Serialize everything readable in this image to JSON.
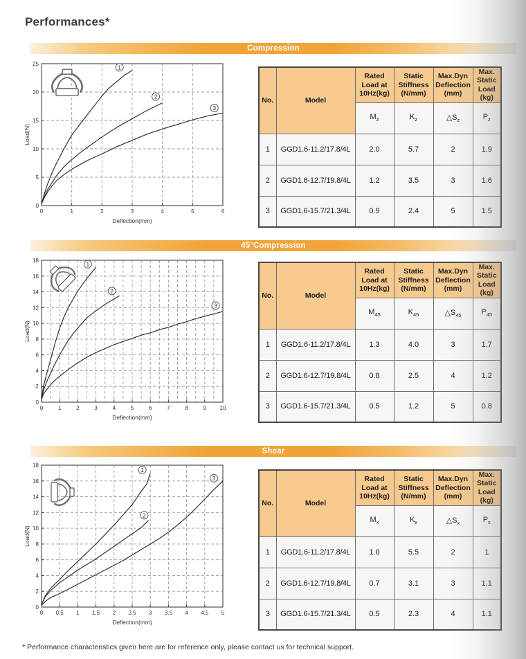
{
  "page": {
    "title": "Performances*",
    "footnote": "* Performance characteristics given here are for reference only, please contact us for technical support."
  },
  "colors": {
    "section_bar_orange": "#f0a338",
    "section_bar_edge": "#faf0dc",
    "table_header_tan": "#f6ca8e",
    "curve_color": "#2b2b2b",
    "grid_color": "#9a9a9a"
  },
  "table_headers": {
    "no": "No.",
    "model": "Model",
    "cols": [
      "Rated Load at 10Hz(kg)",
      "Static Stiffness (N/mm)",
      "Max.Dyn Deflection (mm)",
      "Max. Static Load (kg)"
    ]
  },
  "sections": [
    {
      "header": "Compression",
      "symbols": [
        {
          "base": "M",
          "sub": "z"
        },
        {
          "base": "K",
          "sub": "z"
        },
        {
          "base": "△S",
          "sub": "z"
        },
        {
          "base": "P",
          "sub": "z"
        }
      ],
      "table_rows": [
        [
          "1",
          "GGD1.6-11.2/17.8/4L",
          "2.0",
          "5.7",
          "2",
          "1.9"
        ],
        [
          "2",
          "GGD1.6-12.7/19.8/4L",
          "1.2",
          "3.5",
          "3",
          "1.6"
        ],
        [
          "3",
          "GGD1.6-15.7/21.3/4L",
          "0.9",
          "2.4",
          "5",
          "1.5"
        ]
      ],
      "chart_data": {
        "type": "line",
        "title": "Compression load-deflection curves",
        "xlabel": "Deflection(mm)",
        "ylabel": "Load(N)",
        "xlim": [
          0,
          6
        ],
        "ylim": [
          0,
          25
        ],
        "xtick_step": 1,
        "ytick_step": 5,
        "xgrid_step": 1,
        "ygrid_step": 5,
        "grid": true,
        "grid_style": "dashed",
        "legend": "circled numbers at curve ends",
        "series": [
          {
            "name": "1",
            "label_at": [
              2.58,
              24.35
            ],
            "points": [
              [
                0,
                0.3
              ],
              [
                0.1,
                2.2
              ],
              [
                0.2,
                3.8
              ],
              [
                0.35,
                5.8
              ],
              [
                0.5,
                7.5
              ],
              [
                0.75,
                10.1
              ],
              [
                1,
                12.4
              ],
              [
                1.25,
                14.2
              ],
              [
                1.5,
                15.9
              ],
              [
                1.75,
                17.6
              ],
              [
                2,
                19.3
              ],
              [
                2.25,
                20.8
              ],
              [
                2.5,
                21.9
              ],
              [
                2.75,
                23
              ],
              [
                3,
                23.8
              ]
            ]
          },
          {
            "name": "2",
            "label_at": [
              3.78,
              19.2
            ],
            "points": [
              [
                0,
                0.3
              ],
              [
                0.1,
                1.7
              ],
              [
                0.2,
                2.8
              ],
              [
                0.35,
                4.1
              ],
              [
                0.5,
                5.3
              ],
              [
                0.75,
                6.9
              ],
              [
                1,
                8.1
              ],
              [
                1.25,
                9.2
              ],
              [
                1.5,
                10.2
              ],
              [
                2,
                12.1
              ],
              [
                2.5,
                13.8
              ],
              [
                3,
                15.3
              ],
              [
                3.5,
                16.8
              ],
              [
                4,
                18.1
              ]
            ]
          },
          {
            "name": "3",
            "label_at": [
              5.72,
              17.2
            ],
            "points": [
              [
                0,
                0.3
              ],
              [
                0.1,
                1.5
              ],
              [
                0.2,
                2.4
              ],
              [
                0.35,
                3.5
              ],
              [
                0.5,
                4.4
              ],
              [
                0.75,
                5.5
              ],
              [
                1,
                6.4
              ],
              [
                1.5,
                7.9
              ],
              [
                2,
                9.1
              ],
              [
                2.5,
                10.4
              ],
              [
                3,
                11.5
              ],
              [
                3.5,
                12.6
              ],
              [
                4,
                13.5
              ],
              [
                4.5,
                14.3
              ],
              [
                5,
                15.1
              ],
              [
                5.5,
                15.8
              ],
              [
                6,
                16.3
              ]
            ]
          }
        ]
      }
    },
    {
      "header": "45°Compression",
      "symbols": [
        {
          "base": "M",
          "sub": "45"
        },
        {
          "base": "K",
          "sub": "45"
        },
        {
          "base": "△S",
          "sub": "45"
        },
        {
          "base": "P",
          "sub": "45"
        }
      ],
      "table_rows": [
        [
          "1",
          "GGD1.6-11.2/17.8/4L",
          "1.3",
          "4.0",
          "3",
          "1.7"
        ],
        [
          "2",
          "GGD1.6-12.7/19.8/4L",
          "0.8",
          "2.5",
          "4",
          "1.2"
        ],
        [
          "3",
          "GGD1.6-15.7/21.3/4L",
          "0.5",
          "1.2",
          "5",
          "0.8"
        ]
      ],
      "chart_data": {
        "type": "line",
        "title": "45° compression load-deflection curves",
        "xlabel": "Deflection(mm)",
        "ylabel": "Load(N)",
        "xlim": [
          0,
          10
        ],
        "ylim": [
          0,
          18
        ],
        "xtick_step": 1,
        "ytick_step": 2,
        "xgrid_step": 0.5,
        "ygrid_step": 2,
        "grid": true,
        "grid_style": "dashed",
        "legend": "circled numbers at curve ends",
        "series": [
          {
            "name": "1",
            "label_at": [
              2.55,
              17.5
            ],
            "points": [
              [
                0,
                0.4
              ],
              [
                0.1,
                1.9
              ],
              [
                0.25,
                3.3
              ],
              [
                0.5,
                5.4
              ],
              [
                0.75,
                7.5
              ],
              [
                1,
                9.4
              ],
              [
                1.25,
                10.9
              ],
              [
                1.5,
                12.1
              ],
              [
                1.75,
                13.1
              ],
              [
                2,
                14.1
              ],
              [
                2.25,
                14.9
              ],
              [
                2.5,
                15.7
              ],
              [
                2.75,
                16.4
              ],
              [
                3,
                17.1
              ]
            ]
          },
          {
            "name": "2",
            "label_at": [
              3.88,
              14.1
            ],
            "points": [
              [
                0,
                0.4
              ],
              [
                0.1,
                1.4
              ],
              [
                0.25,
                2.4
              ],
              [
                0.5,
                3.7
              ],
              [
                0.75,
                4.9
              ],
              [
                1,
                6
              ],
              [
                1.25,
                7
              ],
              [
                1.5,
                7.9
              ],
              [
                1.75,
                8.7
              ],
              [
                2,
                9.4
              ],
              [
                2.5,
                10.7
              ],
              [
                3,
                11.6
              ],
              [
                3.5,
                12.4
              ],
              [
                4,
                13.1
              ],
              [
                4.3,
                13.5
              ]
            ]
          },
          {
            "name": "3",
            "label_at": [
              9.6,
              12.25
            ],
            "points": [
              [
                0,
                0.3
              ],
              [
                0.1,
                1
              ],
              [
                0.25,
                1.5
              ],
              [
                0.5,
                2.2
              ],
              [
                0.75,
                2.8
              ],
              [
                1,
                3.3
              ],
              [
                1.5,
                4.2
              ],
              [
                2,
                5
              ],
              [
                2.5,
                5.7
              ],
              [
                3,
                6.3
              ],
              [
                3.5,
                6.8
              ],
              [
                4,
                7.3
              ],
              [
                4.5,
                7.7
              ],
              [
                5,
                8.1
              ],
              [
                5.5,
                8.5
              ],
              [
                6,
                8.8
              ],
              [
                6.5,
                9.2
              ],
              [
                7,
                9.5
              ],
              [
                7.5,
                9.9
              ],
              [
                8,
                10.2
              ],
              [
                8.5,
                10.6
              ],
              [
                9,
                10.9
              ],
              [
                9.5,
                11.2
              ],
              [
                10,
                11.5
              ]
            ]
          }
        ]
      }
    },
    {
      "header": "Shear",
      "symbols": [
        {
          "base": "M",
          "sub": "x"
        },
        {
          "base": "K",
          "sub": "x"
        },
        {
          "base": "△S",
          "sub": "x"
        },
        {
          "base": "P",
          "sub": "x"
        }
      ],
      "table_rows": [
        [
          "1",
          "GGD1.6-11.2/17.8/4L",
          "1.0",
          "5.5",
          "2",
          "1"
        ],
        [
          "2",
          "GGD1.6-12.7/19.8/4L",
          "0.7",
          "3.1",
          "3",
          "1.1"
        ],
        [
          "3",
          "GGD1.6-15.7/21.3/4L",
          "0.5",
          "2.3",
          "4",
          "1.1"
        ]
      ],
      "chart_data": {
        "type": "line",
        "title": "Shear load-deflection curves",
        "xlabel": "Deflection(mm)",
        "ylabel": "Load(N)",
        "xlim": [
          0,
          5
        ],
        "ylim": [
          0,
          18
        ],
        "xtick_step": 0.5,
        "ytick_step": 2,
        "xgrid_step": 0.5,
        "ygrid_step": 2,
        "grid": true,
        "grid_style": "dashed",
        "legend": "circled numbers at curve ends",
        "series": [
          {
            "name": "1",
            "label_at": [
              2.78,
              17.4
            ],
            "points": [
              [
                0,
                0.3
              ],
              [
                0.1,
                1.4
              ],
              [
                0.25,
                2.4
              ],
              [
                0.5,
                3.5
              ],
              [
                0.75,
                4.7
              ],
              [
                1,
                5.8
              ],
              [
                1.25,
                6.9
              ],
              [
                1.5,
                8
              ],
              [
                1.75,
                9.2
              ],
              [
                2,
                10.4
              ],
              [
                2.25,
                11.7
              ],
              [
                2.5,
                13
              ],
              [
                2.75,
                14.7
              ],
              [
                2.9,
                15.6
              ],
              [
                3,
                17
              ]
            ]
          },
          {
            "name": "2",
            "label_at": [
              2.83,
              11.65
            ],
            "points": [
              [
                0,
                0.3
              ],
              [
                0.1,
                1.3
              ],
              [
                0.25,
                2.1
              ],
              [
                0.5,
                3.1
              ],
              [
                0.75,
                3.9
              ],
              [
                1,
                4.7
              ],
              [
                1.25,
                5.4
              ],
              [
                1.5,
                6.1
              ],
              [
                1.75,
                6.9
              ],
              [
                2,
                7.7
              ],
              [
                2.25,
                8.5
              ],
              [
                2.5,
                9.3
              ],
              [
                2.75,
                10.1
              ],
              [
                2.95,
                11
              ]
            ]
          },
          {
            "name": "3",
            "label_at": [
              4.75,
              16.35
            ],
            "points": [
              [
                0,
                0.2
              ],
              [
                0.1,
                0.7
              ],
              [
                0.25,
                1.2
              ],
              [
                0.5,
                1.7
              ],
              [
                0.75,
                2.3
              ],
              [
                1,
                2.9
              ],
              [
                1.25,
                3.5
              ],
              [
                1.5,
                4.1
              ],
              [
                1.75,
                4.7
              ],
              [
                2,
                5.3
              ],
              [
                2.25,
                5.9
              ],
              [
                2.5,
                6.6
              ],
              [
                2.75,
                7.3
              ],
              [
                3,
                8
              ],
              [
                3.25,
                8.7
              ],
              [
                3.5,
                9.5
              ],
              [
                3.75,
                10.4
              ],
              [
                4,
                11.4
              ],
              [
                4.25,
                12.5
              ],
              [
                4.5,
                13.7
              ],
              [
                4.75,
                14.9
              ],
              [
                5,
                16
              ]
            ]
          }
        ]
      }
    }
  ]
}
